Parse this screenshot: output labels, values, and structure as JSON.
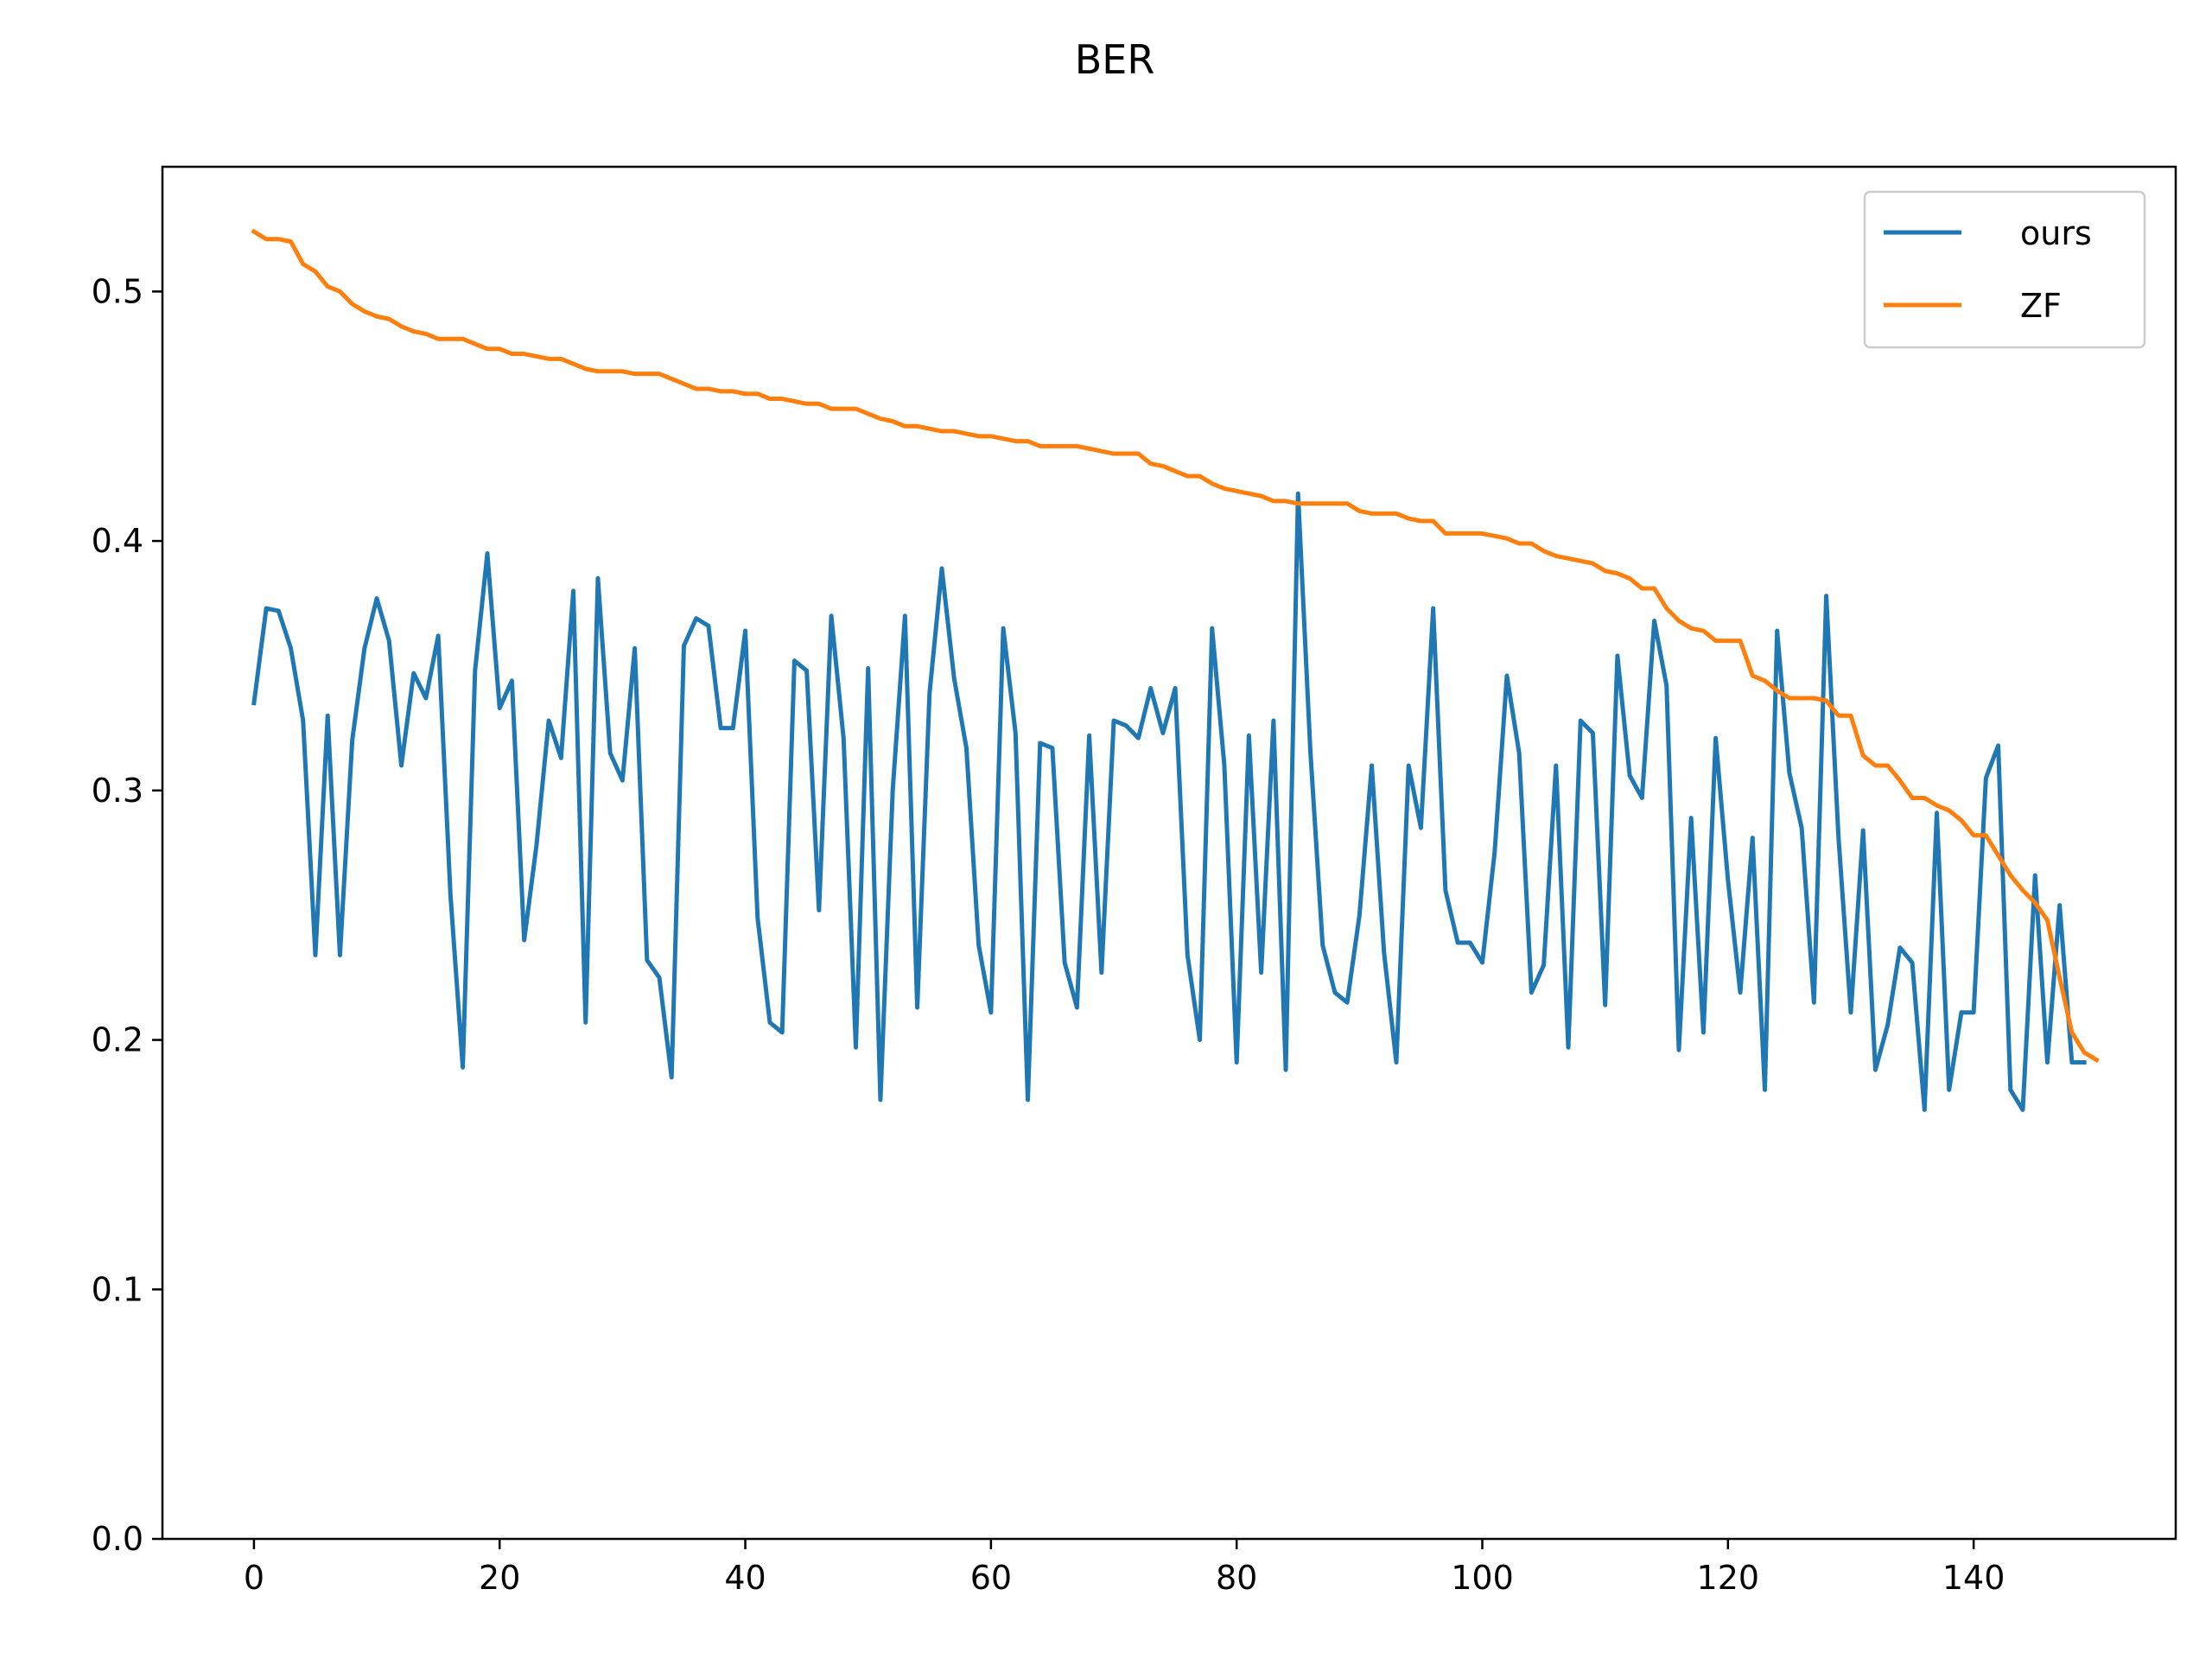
{
  "chart_data": {
    "type": "line",
    "title": "BER",
    "xlabel": "",
    "ylabel": "",
    "xlim": [
      -7.45,
      156.45
    ],
    "ylim": [
      0.0,
      0.55
    ],
    "xticks": [
      0,
      20,
      40,
      60,
      80,
      100,
      120,
      140
    ],
    "xtick_labels": [
      "0",
      "20",
      "40",
      "60",
      "80",
      "100",
      "120",
      "140"
    ],
    "yticks": [
      0.0,
      0.1,
      0.2,
      0.3,
      0.4,
      0.5
    ],
    "ytick_labels": [
      "0.0",
      "0.1",
      "0.2",
      "0.3",
      "0.4",
      "0.5"
    ],
    "grid": false,
    "legend_position": "top-right",
    "series": [
      {
        "name": "ours",
        "color": "#1f77b4",
        "values": [
          0.335,
          0.373,
          0.372,
          0.357,
          0.328,
          0.234,
          0.33,
          0.234,
          0.32,
          0.357,
          0.377,
          0.36,
          0.31,
          0.347,
          0.337,
          0.362,
          0.258,
          0.189,
          0.348,
          0.395,
          0.333,
          0.344,
          0.24,
          0.278,
          0.328,
          0.313,
          0.38,
          0.207,
          0.385,
          0.315,
          0.304,
          0.357,
          0.232,
          0.225,
          0.185,
          0.358,
          0.369,
          0.366,
          0.325,
          0.325,
          0.364,
          0.249,
          0.207,
          0.203,
          0.352,
          0.348,
          0.252,
          0.37,
          0.321,
          0.197,
          0.349,
          0.176,
          0.3,
          0.37,
          0.213,
          0.339,
          0.389,
          0.345,
          0.317,
          0.238,
          0.211,
          0.365,
          0.323,
          0.176,
          0.319,
          0.317,
          0.231,
          0.213,
          0.322,
          0.227,
          0.328,
          0.326,
          0.321,
          0.341,
          0.323,
          0.341,
          0.234,
          0.2,
          0.365,
          0.31,
          0.191,
          0.322,
          0.227,
          0.328,
          0.188,
          0.419,
          0.316,
          0.238,
          0.219,
          0.215,
          0.25,
          0.31,
          0.235,
          0.191,
          0.31,
          0.285,
          0.373,
          0.26,
          0.239,
          0.239,
          0.231,
          0.275,
          0.346,
          0.315,
          0.219,
          0.23,
          0.31,
          0.197,
          0.328,
          0.323,
          0.214,
          0.354,
          0.306,
          0.297,
          0.368,
          0.342,
          0.196,
          0.289,
          0.203,
          0.321,
          0.264,
          0.219,
          0.281,
          0.18,
          0.364,
          0.307,
          0.285,
          0.215,
          0.378,
          0.281,
          0.211,
          0.284,
          0.188,
          0.206,
          0.237,
          0.231,
          0.172,
          0.291,
          0.18,
          0.211,
          0.211,
          0.305,
          0.318,
          0.18,
          0.172,
          0.266,
          0.191,
          0.254,
          0.191,
          0.191
        ]
      },
      {
        "name": "ZF",
        "color": "#ff7f0e",
        "values": [
          0.524,
          0.521,
          0.521,
          0.52,
          0.511,
          0.508,
          0.502,
          0.5,
          0.495,
          0.492,
          0.49,
          0.489,
          0.486,
          0.484,
          0.483,
          0.481,
          0.481,
          0.481,
          0.479,
          0.477,
          0.477,
          0.475,
          0.475,
          0.474,
          0.473,
          0.473,
          0.471,
          0.469,
          0.468,
          0.468,
          0.468,
          0.467,
          0.467,
          0.467,
          0.465,
          0.463,
          0.461,
          0.461,
          0.46,
          0.46,
          0.459,
          0.459,
          0.457,
          0.457,
          0.456,
          0.455,
          0.455,
          0.453,
          0.453,
          0.453,
          0.451,
          0.449,
          0.448,
          0.446,
          0.446,
          0.445,
          0.444,
          0.444,
          0.443,
          0.442,
          0.442,
          0.441,
          0.44,
          0.44,
          0.438,
          0.438,
          0.438,
          0.438,
          0.437,
          0.436,
          0.435,
          0.435,
          0.435,
          0.431,
          0.43,
          0.428,
          0.426,
          0.426,
          0.423,
          0.421,
          0.42,
          0.419,
          0.418,
          0.416,
          0.416,
          0.415,
          0.415,
          0.415,
          0.415,
          0.415,
          0.412,
          0.411,
          0.411,
          0.411,
          0.409,
          0.408,
          0.408,
          0.403,
          0.403,
          0.403,
          0.403,
          0.402,
          0.401,
          0.399,
          0.399,
          0.396,
          0.394,
          0.393,
          0.392,
          0.391,
          0.388,
          0.387,
          0.385,
          0.381,
          0.381,
          0.373,
          0.368,
          0.365,
          0.364,
          0.36,
          0.36,
          0.36,
          0.346,
          0.344,
          0.34,
          0.337,
          0.337,
          0.337,
          0.336,
          0.33,
          0.33,
          0.314,
          0.31,
          0.31,
          0.304,
          0.297,
          0.297,
          0.294,
          0.292,
          0.288,
          0.282,
          0.282,
          0.274,
          0.266,
          0.26,
          0.255,
          0.248,
          0.225,
          0.203,
          0.195,
          0.192
        ]
      }
    ]
  }
}
